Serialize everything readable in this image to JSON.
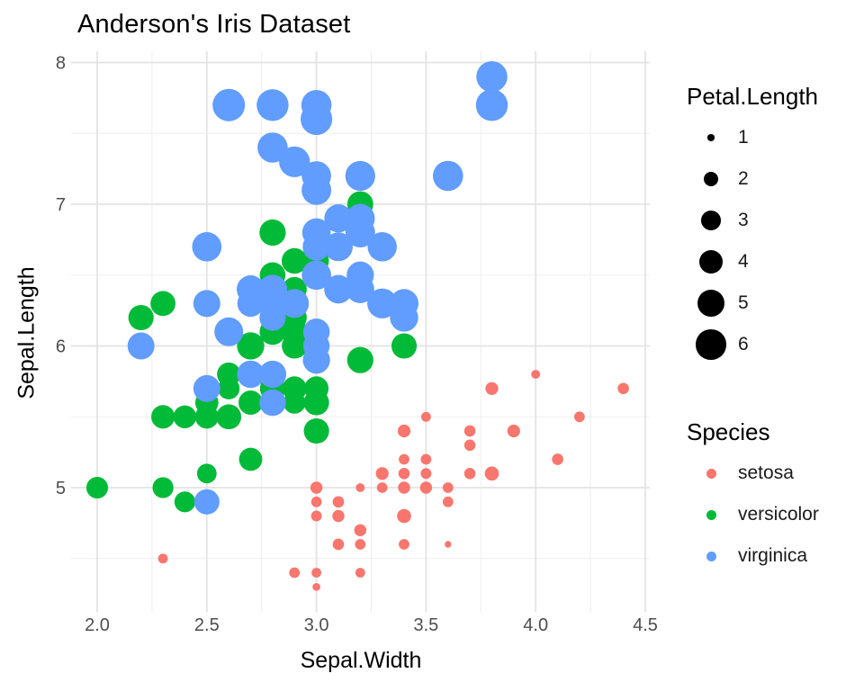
{
  "chart_data": {
    "type": "scatter",
    "title": "Anderson's Iris Dataset",
    "xlabel": "Sepal.Width",
    "ylabel": "Sepal.Length",
    "xlim": [
      1.88,
      4.52
    ],
    "ylim": [
      4.12,
      8.08
    ],
    "grid": true,
    "legend_position": "right",
    "background_color": "#ffffff",
    "major_grid_color": "#e3e3e3",
    "minor_grid_color": "#efefef",
    "tick_label_color": "#4d4d4d",
    "x_ticks": {
      "values": [
        2.0,
        2.5,
        3.0,
        3.5,
        4.0,
        4.5
      ],
      "labels": [
        "2.0",
        "2.5",
        "3.0",
        "3.5",
        "4.0",
        "4.5"
      ]
    },
    "y_ticks": {
      "values": [
        5,
        6,
        7,
        8
      ],
      "labels": [
        "5",
        "6",
        "7",
        "8"
      ]
    },
    "x_minor": [
      2.25,
      2.75,
      3.25,
      3.75,
      4.25
    ],
    "y_minor": [
      4.5,
      5.5,
      6.5,
      7.5
    ],
    "size_domain": [
      1,
      6.9
    ],
    "size_legend": {
      "title": "Petal.Length",
      "breaks": [
        1,
        2,
        3,
        4,
        5,
        6
      ]
    },
    "color_legend": {
      "title": "Species",
      "entries": [
        {
          "label": "setosa",
          "color": "#F8766D"
        },
        {
          "label": "versicolor",
          "color": "#00BA38"
        },
        {
          "label": "virginica",
          "color": "#619CFF"
        }
      ]
    },
    "point_format": [
      "sepal_width_x",
      "sepal_length_y",
      "petal_length_size"
    ],
    "series": [
      {
        "name": "setosa",
        "color": "#F8766D",
        "points": [
          [
            3.5,
            5.1,
            1.4
          ],
          [
            3.0,
            4.9,
            1.4
          ],
          [
            3.2,
            4.7,
            1.3
          ],
          [
            3.1,
            4.6,
            1.5
          ],
          [
            3.6,
            5.0,
            1.4
          ],
          [
            3.9,
            5.4,
            1.7
          ],
          [
            3.4,
            4.6,
            1.4
          ],
          [
            3.4,
            5.0,
            1.5
          ],
          [
            2.9,
            4.4,
            1.4
          ],
          [
            3.1,
            4.9,
            1.5
          ],
          [
            3.7,
            5.4,
            1.5
          ],
          [
            3.4,
            4.8,
            1.6
          ],
          [
            3.0,
            4.8,
            1.4
          ],
          [
            3.0,
            4.3,
            1.1
          ],
          [
            4.0,
            5.8,
            1.2
          ],
          [
            4.4,
            5.7,
            1.5
          ],
          [
            3.9,
            5.4,
            1.3
          ],
          [
            3.5,
            5.1,
            1.4
          ],
          [
            3.8,
            5.7,
            1.7
          ],
          [
            3.8,
            5.1,
            1.5
          ],
          [
            3.4,
            5.4,
            1.7
          ],
          [
            3.7,
            5.1,
            1.5
          ],
          [
            3.6,
            4.6,
            1.0
          ],
          [
            3.3,
            5.1,
            1.7
          ],
          [
            3.4,
            4.8,
            1.9
          ],
          [
            3.0,
            5.0,
            1.6
          ],
          [
            3.4,
            5.0,
            1.6
          ],
          [
            3.5,
            5.2,
            1.4
          ],
          [
            3.4,
            5.2,
            1.4
          ],
          [
            3.2,
            4.7,
            1.6
          ],
          [
            3.1,
            4.8,
            1.6
          ],
          [
            3.4,
            5.4,
            1.5
          ],
          [
            4.1,
            5.2,
            1.5
          ],
          [
            4.2,
            5.5,
            1.4
          ],
          [
            3.1,
            4.9,
            1.5
          ],
          [
            3.2,
            5.0,
            1.2
          ],
          [
            3.5,
            5.5,
            1.3
          ],
          [
            3.6,
            4.9,
            1.4
          ],
          [
            3.0,
            4.4,
            1.3
          ],
          [
            3.4,
            5.1,
            1.5
          ],
          [
            3.5,
            5.0,
            1.3
          ],
          [
            2.3,
            4.5,
            1.3
          ],
          [
            3.2,
            4.4,
            1.3
          ],
          [
            3.5,
            5.0,
            1.6
          ],
          [
            3.8,
            5.1,
            1.9
          ],
          [
            3.0,
            4.8,
            1.4
          ],
          [
            3.8,
            5.1,
            1.6
          ],
          [
            3.2,
            4.6,
            1.4
          ],
          [
            3.7,
            5.3,
            1.5
          ],
          [
            3.3,
            5.0,
            1.4
          ]
        ]
      },
      {
        "name": "versicolor",
        "color": "#00BA38",
        "points": [
          [
            3.2,
            7.0,
            4.7
          ],
          [
            3.2,
            6.4,
            4.5
          ],
          [
            3.1,
            6.9,
            4.9
          ],
          [
            2.3,
            5.5,
            4.0
          ],
          [
            2.8,
            6.5,
            4.6
          ],
          [
            2.8,
            5.7,
            4.5
          ],
          [
            3.3,
            6.3,
            4.7
          ],
          [
            2.4,
            4.9,
            3.3
          ],
          [
            2.9,
            6.6,
            4.6
          ],
          [
            2.7,
            5.2,
            3.9
          ],
          [
            2.0,
            5.0,
            3.5
          ],
          [
            3.0,
            5.9,
            4.2
          ],
          [
            2.2,
            6.0,
            4.0
          ],
          [
            2.9,
            6.1,
            4.7
          ],
          [
            2.9,
            5.6,
            3.6
          ],
          [
            3.1,
            6.7,
            4.4
          ],
          [
            3.0,
            5.6,
            4.5
          ],
          [
            2.7,
            5.8,
            4.1
          ],
          [
            2.2,
            6.2,
            4.5
          ],
          [
            2.5,
            5.6,
            3.9
          ],
          [
            3.2,
            5.9,
            4.8
          ],
          [
            2.8,
            6.1,
            4.0
          ],
          [
            2.5,
            6.3,
            4.9
          ],
          [
            2.8,
            6.1,
            4.7
          ],
          [
            2.9,
            6.4,
            4.3
          ],
          [
            3.0,
            6.6,
            4.4
          ],
          [
            2.8,
            6.8,
            4.8
          ],
          [
            3.0,
            6.7,
            5.0
          ],
          [
            2.9,
            6.0,
            4.5
          ],
          [
            2.6,
            5.7,
            3.5
          ],
          [
            2.4,
            5.5,
            3.8
          ],
          [
            2.4,
            5.5,
            3.7
          ],
          [
            2.7,
            5.8,
            3.9
          ],
          [
            2.7,
            6.0,
            5.1
          ],
          [
            3.0,
            5.4,
            4.5
          ],
          [
            3.4,
            6.0,
            4.5
          ],
          [
            3.1,
            6.7,
            4.7
          ],
          [
            2.3,
            6.3,
            4.4
          ],
          [
            3.0,
            5.6,
            4.1
          ],
          [
            2.5,
            5.5,
            4.0
          ],
          [
            2.6,
            5.5,
            4.4
          ],
          [
            3.0,
            6.1,
            4.6
          ],
          [
            2.6,
            5.8,
            4.0
          ],
          [
            2.3,
            5.0,
            3.3
          ],
          [
            2.7,
            5.6,
            4.2
          ],
          [
            3.0,
            5.7,
            4.2
          ],
          [
            2.9,
            5.7,
            4.2
          ],
          [
            2.9,
            6.2,
            4.3
          ],
          [
            2.5,
            5.1,
            3.0
          ],
          [
            2.8,
            5.7,
            4.1
          ]
        ]
      },
      {
        "name": "virginica",
        "color": "#619CFF",
        "points": [
          [
            3.3,
            6.3,
            6.0
          ],
          [
            2.7,
            5.8,
            5.1
          ],
          [
            3.0,
            7.1,
            5.9
          ],
          [
            2.9,
            6.3,
            5.6
          ],
          [
            3.0,
            6.5,
            5.8
          ],
          [
            3.0,
            7.6,
            6.6
          ],
          [
            2.5,
            4.9,
            4.5
          ],
          [
            2.9,
            7.3,
            6.3
          ],
          [
            2.5,
            6.7,
            5.8
          ],
          [
            3.6,
            7.2,
            6.1
          ],
          [
            3.2,
            6.5,
            5.1
          ],
          [
            2.7,
            6.4,
            5.3
          ],
          [
            3.0,
            6.8,
            5.5
          ],
          [
            2.5,
            5.7,
            5.0
          ],
          [
            2.8,
            5.8,
            5.1
          ],
          [
            3.2,
            6.4,
            5.3
          ],
          [
            3.0,
            6.5,
            5.5
          ],
          [
            3.8,
            7.7,
            6.7
          ],
          [
            2.6,
            7.7,
            6.9
          ],
          [
            2.2,
            6.0,
            5.0
          ],
          [
            3.2,
            6.9,
            5.7
          ],
          [
            2.8,
            5.6,
            4.9
          ],
          [
            2.8,
            7.7,
            6.7
          ],
          [
            2.7,
            6.3,
            4.9
          ],
          [
            3.3,
            6.7,
            5.7
          ],
          [
            3.2,
            7.2,
            6.0
          ],
          [
            2.8,
            6.2,
            4.8
          ],
          [
            3.0,
            6.1,
            4.9
          ],
          [
            2.8,
            6.4,
            5.6
          ],
          [
            3.0,
            7.2,
            5.8
          ],
          [
            2.8,
            7.4,
            6.1
          ],
          [
            3.8,
            7.9,
            6.4
          ],
          [
            2.8,
            6.4,
            5.6
          ],
          [
            2.8,
            6.3,
            5.1
          ],
          [
            2.6,
            6.1,
            5.6
          ],
          [
            3.0,
            7.7,
            6.1
          ],
          [
            3.4,
            6.3,
            5.6
          ],
          [
            3.1,
            6.4,
            5.5
          ],
          [
            3.0,
            6.0,
            4.8
          ],
          [
            3.1,
            6.9,
            5.4
          ],
          [
            3.1,
            6.7,
            5.6
          ],
          [
            3.1,
            6.9,
            5.1
          ],
          [
            2.7,
            5.8,
            5.1
          ],
          [
            3.2,
            6.8,
            5.9
          ],
          [
            3.3,
            6.7,
            5.7
          ],
          [
            3.0,
            6.7,
            5.2
          ],
          [
            2.5,
            6.3,
            5.0
          ],
          [
            3.0,
            6.5,
            5.2
          ],
          [
            3.4,
            6.2,
            5.4
          ],
          [
            3.0,
            5.9,
            5.1
          ]
        ]
      }
    ]
  }
}
